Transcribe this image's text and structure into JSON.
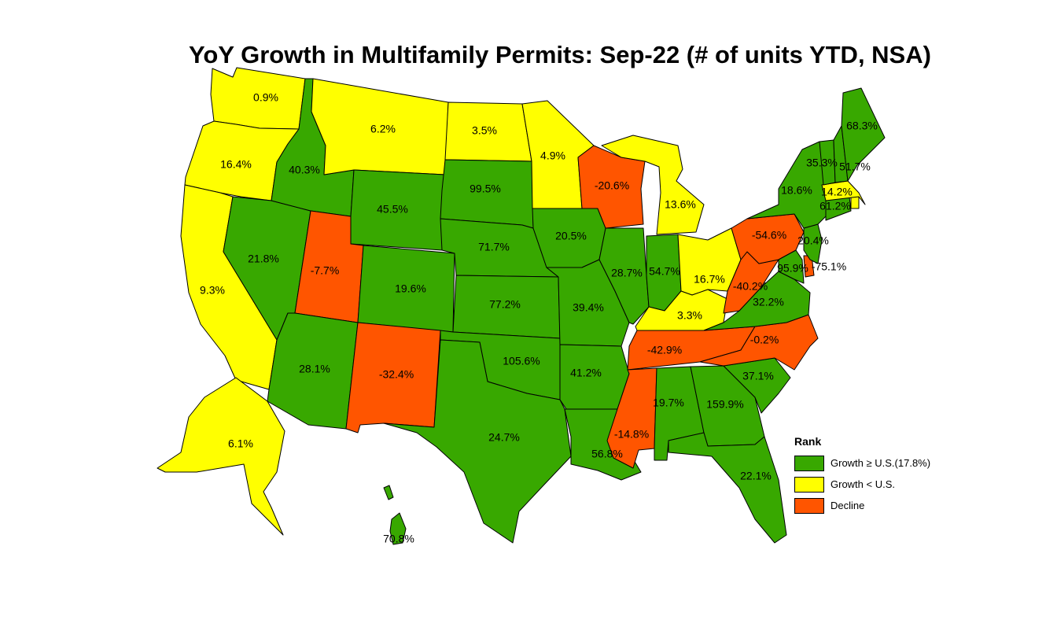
{
  "title": "YoY Growth in Multifamily Permits: Sep-22 (# of units YTD, NSA)",
  "colors": {
    "growth_above": "#38a800",
    "growth_below": "#ffff00",
    "decline": "#ff5500"
  },
  "legend": {
    "title": "Rank",
    "items": [
      {
        "label": "Growth ≥ U.S.(17.8%)",
        "category": "growth_above"
      },
      {
        "label": "Growth < U.S.",
        "category": "growth_below"
      },
      {
        "label": "Decline",
        "category": "decline"
      }
    ]
  },
  "states": [
    {
      "id": "WA",
      "value": "0.9%",
      "category": "growth_below"
    },
    {
      "id": "OR",
      "value": "16.4%",
      "category": "growth_below"
    },
    {
      "id": "CA",
      "value": "9.3%",
      "category": "growth_below"
    },
    {
      "id": "NV",
      "value": "21.8%",
      "category": "growth_above"
    },
    {
      "id": "ID",
      "value": "40.3%",
      "category": "growth_above"
    },
    {
      "id": "MT",
      "value": "6.2%",
      "category": "growth_below"
    },
    {
      "id": "WY",
      "value": "45.5%",
      "category": "growth_above"
    },
    {
      "id": "UT",
      "value": "-7.7%",
      "category": "decline"
    },
    {
      "id": "AZ",
      "value": "28.1%",
      "category": "growth_above"
    },
    {
      "id": "CO",
      "value": "19.6%",
      "category": "growth_above"
    },
    {
      "id": "NM",
      "value": "-32.4%",
      "category": "decline"
    },
    {
      "id": "ND",
      "value": "3.5%",
      "category": "growth_below"
    },
    {
      "id": "SD",
      "value": "99.5%",
      "category": "growth_above"
    },
    {
      "id": "NE",
      "value": "71.7%",
      "category": "growth_above"
    },
    {
      "id": "KS",
      "value": "77.2%",
      "category": "growth_above"
    },
    {
      "id": "OK",
      "value": "105.6%",
      "category": "growth_above"
    },
    {
      "id": "TX",
      "value": "24.7%",
      "category": "growth_above"
    },
    {
      "id": "MN",
      "value": "4.9%",
      "category": "growth_below"
    },
    {
      "id": "IA",
      "value": "20.5%",
      "category": "growth_above"
    },
    {
      "id": "MO",
      "value": "39.4%",
      "category": "growth_above"
    },
    {
      "id": "AR",
      "value": "41.2%",
      "category": "growth_above"
    },
    {
      "id": "LA",
      "value": "56.8%",
      "category": "growth_above"
    },
    {
      "id": "WI",
      "value": "-20.6%",
      "category": "decline"
    },
    {
      "id": "IL",
      "value": "28.7%",
      "category": "growth_above"
    },
    {
      "id": "MI",
      "value": "13.6%",
      "category": "growth_below"
    },
    {
      "id": "IN",
      "value": "54.7%",
      "category": "growth_above"
    },
    {
      "id": "OH",
      "value": "16.7%",
      "category": "growth_below"
    },
    {
      "id": "KY",
      "value": "3.3%",
      "category": "growth_below"
    },
    {
      "id": "TN",
      "value": "-42.9%",
      "category": "decline"
    },
    {
      "id": "MS",
      "value": "-14.8%",
      "category": "decline"
    },
    {
      "id": "AL",
      "value": "19.7%",
      "category": "growth_above"
    },
    {
      "id": "GA",
      "value": "159.9%",
      "category": "growth_above"
    },
    {
      "id": "FL",
      "value": "22.1%",
      "category": "growth_above"
    },
    {
      "id": "SC",
      "value": "37.1%",
      "category": "growth_above"
    },
    {
      "id": "NC",
      "value": "-0.2%",
      "category": "decline"
    },
    {
      "id": "VA",
      "value": "32.2%",
      "category": "growth_above"
    },
    {
      "id": "WV",
      "value": "-40.2%",
      "category": "decline"
    },
    {
      "id": "PA",
      "value": "-54.6%",
      "category": "decline"
    },
    {
      "id": "NY",
      "value": "18.6%",
      "category": "growth_above"
    },
    {
      "id": "VT",
      "value": "35.3%",
      "category": "growth_above"
    },
    {
      "id": "NH",
      "value": "51.7%",
      "category": "growth_above"
    },
    {
      "id": "ME",
      "value": "68.3%",
      "category": "growth_above"
    },
    {
      "id": "MA",
      "value": "14.2%",
      "category": "growth_below"
    },
    {
      "id": "CT",
      "value": "61.2%",
      "category": "growth_above"
    },
    {
      "id": "RI",
      "value": "",
      "category": "growth_below"
    },
    {
      "id": "NJ",
      "value": "20.4%",
      "category": "growth_above"
    },
    {
      "id": "DE",
      "value": "-75.1%",
      "category": "decline"
    },
    {
      "id": "MD",
      "value": "95.9%",
      "category": "growth_above"
    },
    {
      "id": "AK",
      "value": "6.1%",
      "category": "growth_below"
    },
    {
      "id": "HI",
      "value": "70.8%",
      "category": "growth_above"
    }
  ]
}
